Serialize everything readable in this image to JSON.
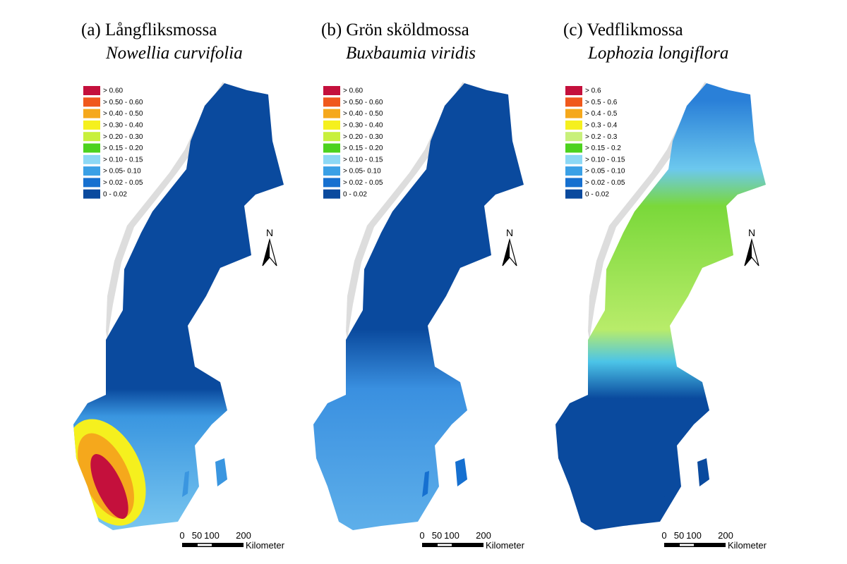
{
  "panels": [
    {
      "title": "(a) Långfliksmossa",
      "species": "Nowellia curvifolia",
      "legend": [
        {
          "label": "> 0.60",
          "color": "#c4103c"
        },
        {
          "label": "> 0.50 - 0.60",
          "color": "#f0581c"
        },
        {
          "label": "> 0.40 - 0.50",
          "color": "#f5a81c"
        },
        {
          "label": "> 0.30 - 0.40",
          "color": "#f5f01e"
        },
        {
          "label": "> 0.20 - 0.30",
          "color": "#c8f03c"
        },
        {
          "label": "> 0.15 - 0.20",
          "color": "#4cd21e"
        },
        {
          "label": "> 0.10 - 0.15",
          "color": "#8cd8f5"
        },
        {
          "label": "> 0.05- 0.10",
          "color": "#3aa0e6"
        },
        {
          "label": "> 0.02 - 0.05",
          "color": "#1670d0"
        },
        {
          "label": "0 - 0.02",
          "color": "#0a4a9e"
        }
      ],
      "north": "N",
      "scale": {
        "ticks": [
          "0",
          "50",
          "100",
          "200"
        ],
        "unit": "Kilometer"
      }
    },
    {
      "title": "(b) Grön sköldmossa",
      "species": "Buxbaumia viridis",
      "legend": [
        {
          "label": "> 0.60",
          "color": "#c4103c"
        },
        {
          "label": "> 0.50 - 0.60",
          "color": "#f0581c"
        },
        {
          "label": "> 0.40 - 0.50",
          "color": "#f5a81c"
        },
        {
          "label": "> 0.30 - 0.40",
          "color": "#f5f01e"
        },
        {
          "label": "> 0.20 - 0.30",
          "color": "#c8f03c"
        },
        {
          "label": "> 0.15 - 0.20",
          "color": "#4cd21e"
        },
        {
          "label": "> 0.10 - 0.15",
          "color": "#8cd8f5"
        },
        {
          "label": "> 0.05- 0.10",
          "color": "#3aa0e6"
        },
        {
          "label": "> 0.02 - 0.05",
          "color": "#1670d0"
        },
        {
          "label": "0 - 0.02",
          "color": "#0a4a9e"
        }
      ],
      "north": "N",
      "scale": {
        "ticks": [
          "0",
          "50",
          "100",
          "200"
        ],
        "unit": "Kilometer"
      }
    },
    {
      "title": "(c) Vedflikmossa",
      "species": "Lophozia longiflora",
      "legend": [
        {
          "label": "> 0.6",
          "color": "#c4103c"
        },
        {
          "label": "> 0.5 - 0.6",
          "color": "#f0581c"
        },
        {
          "label": "> 0.4 - 0.5",
          "color": "#f5a81c"
        },
        {
          "label": "> 0.3 - 0.4",
          "color": "#f5f01e"
        },
        {
          "label": "> 0.2 - 0.3",
          "color": "#c8f07a"
        },
        {
          "label": "> 0.15 - 0.2",
          "color": "#4cd21e"
        },
        {
          "label": "> 0.10 - 0.15",
          "color": "#8cd8f5"
        },
        {
          "label": "> 0.05 - 0.10",
          "color": "#3aa0e6"
        },
        {
          "label": "> 0.02 - 0.05",
          "color": "#1670d0"
        },
        {
          "label": "0 - 0.02",
          "color": "#0a4a9e"
        }
      ],
      "north": "N",
      "scale": {
        "ticks": [
          "0",
          "50",
          "100",
          "200"
        ],
        "unit": "Kilometer"
      }
    }
  ]
}
